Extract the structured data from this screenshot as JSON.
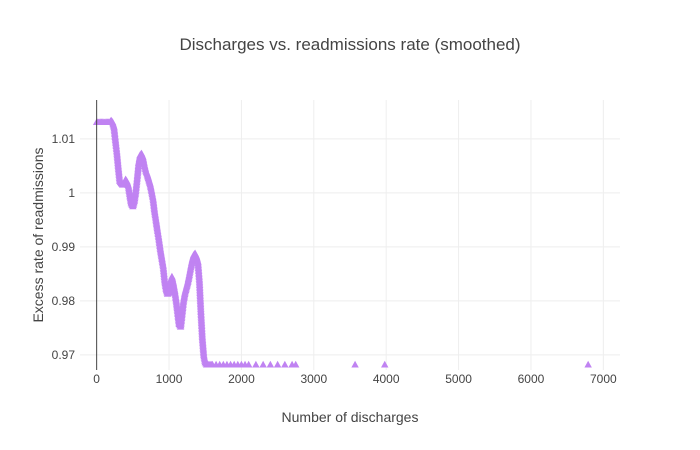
{
  "chart_data": {
    "type": "scatter",
    "title": "Discharges vs. readmissions rate (smoothed)",
    "xlabel": "Number of discharges",
    "ylabel": "Excess rate of readmissions",
    "xlim": [
      -230,
      7230
    ],
    "ylim": [
      0.9672,
      1.0172
    ],
    "xticks": [
      0,
      1000,
      2000,
      3000,
      4000,
      5000,
      6000,
      7000
    ],
    "xtick_labels": [
      "0",
      "1000",
      "2000",
      "3000",
      "4000",
      "5000",
      "6000",
      "7000"
    ],
    "yticks": [
      0.97,
      0.98,
      0.99,
      1.0,
      1.01
    ],
    "ytick_labels": [
      "0.97",
      "0.98",
      "0.99",
      "1",
      "1.01"
    ],
    "grid": true,
    "marker": "triangle-up",
    "color": "#c083f2",
    "series": [
      {
        "x": [
          0,
          50,
          100,
          150,
          180,
          200,
          220,
          240,
          260,
          280,
          300,
          320,
          340,
          360,
          380,
          400,
          420,
          440,
          460,
          480,
          500,
          520,
          540,
          560,
          580,
          600,
          620,
          640,
          660,
          680,
          700,
          720,
          740,
          760,
          780,
          800,
          820,
          840,
          860,
          880,
          900,
          920,
          940,
          960,
          980,
          1000,
          1020,
          1040,
          1060,
          1080,
          1100,
          1120,
          1140,
          1160,
          1180,
          1200,
          1220,
          1240,
          1260,
          1280,
          1300,
          1320,
          1340,
          1360,
          1380,
          1400,
          1420,
          1440,
          1460,
          1480,
          1500,
          1520,
          1550,
          1600,
          1650,
          1700,
          1750,
          1800,
          1850,
          1900,
          1950,
          2000,
          2050,
          2100,
          2200,
          2300,
          2400,
          2500,
          2600,
          2700,
          2750,
          3570,
          3980,
          6790
        ],
        "y": [
          1.0131,
          1.0131,
          1.0131,
          1.0131,
          1.0131,
          1.0134,
          1.0131,
          1.0122,
          1.0098,
          1.0075,
          1.0047,
          1.0022,
          1.0018,
          1.0015,
          1.0018,
          1.0025,
          1.0021,
          1.0012,
          0.9995,
          0.998,
          0.9975,
          0.9985,
          1.0003,
          1.0028,
          1.0055,
          1.007,
          1.0073,
          1.0066,
          1.0052,
          1.0041,
          1.0034,
          1.0025,
          1.0016,
          1.0003,
          0.9989,
          0.9967,
          0.995,
          0.9932,
          0.9915,
          0.9896,
          0.988,
          0.9864,
          0.9838,
          0.9822,
          0.9813,
          0.9816,
          0.9835,
          0.9845,
          0.9833,
          0.9818,
          0.98,
          0.9778,
          0.9757,
          0.9752,
          0.9776,
          0.98,
          0.9815,
          0.9825,
          0.9835,
          0.9848,
          0.9862,
          0.9875,
          0.9885,
          0.9888,
          0.9882,
          0.9872,
          0.9838,
          0.9782,
          0.9733,
          0.97,
          0.9686,
          0.9682,
          0.9682,
          0.9682,
          0.9682,
          0.9682,
          0.9682,
          0.9682,
          0.9682,
          0.9682,
          0.9682,
          0.9682,
          0.9682,
          0.9682,
          0.9682,
          0.9682,
          0.9682,
          0.9682,
          0.9682,
          0.9682,
          0.9682,
          0.9682,
          0.9682,
          0.9682
        ]
      }
    ]
  }
}
